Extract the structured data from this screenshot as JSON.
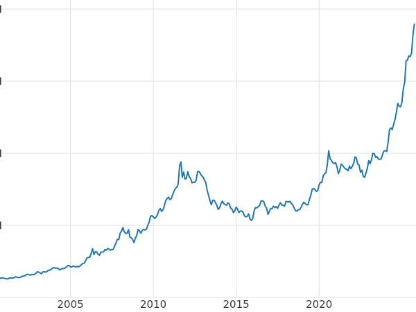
{
  "figure": {
    "background": "#ffffff"
  },
  "chart_data": {
    "type": "line",
    "title": "",
    "legend": "none",
    "grid": true,
    "x_axis": {
      "domain": [
        2000.75,
        2025.85
      ],
      "ticks": [
        {
          "label": "2005",
          "value": 2005
        },
        {
          "label": "2010",
          "value": 2010
        },
        {
          "label": "2015",
          "value": 2015
        },
        {
          "label": "2020",
          "value": 2020
        }
      ]
    },
    "y_axis": {
      "domain": [
        0,
        4125
      ],
      "gridline_values": [
        0,
        1000,
        2000,
        3000,
        4000
      ],
      "tick_labels_visible": false
    },
    "style": {
      "line_color": "#1f77b4",
      "line_width": 2,
      "grid_color": "#e2e2e2",
      "grid_width": 1,
      "tick_label_color": "#3a3a3a",
      "tick_label_font_size": 15,
      "background": "#ffffff"
    },
    "series": [
      {
        "name": "value",
        "color": "#1f77b4",
        "start_x": 2000.75,
        "x_step": 0.08333333,
        "values": [
          270,
          266,
          272,
          266,
          262,
          258,
          260,
          272,
          270,
          267,
          272,
          287,
          283,
          276,
          277,
          281,
          295,
          294,
          303,
          314,
          321,
          313,
          310,
          319,
          317,
          320,
          333,
          357,
          351,
          340,
          328,
          355,
          356,
          351,
          360,
          379,
          375,
          389,
          407,
          414,
          405,
          408,
          403,
          383,
          392,
          398,
          401,
          405,
          420,
          439,
          442,
          424,
          423,
          434,
          429,
          422,
          431,
          424,
          437,
          456,
          470,
          476,
          510,
          550,
          555,
          557,
          611,
          675,
          596,
          634,
          632,
          599,
          586,
          627,
          630,
          631,
          665,
          655,
          679,
          667,
          656,
          665,
          665,
          713,
          755,
          806,
          803,
          890,
          922,
          968,
          910,
          889,
          889,
          940,
          839,
          829,
          807,
          761,
          820,
          858,
          943,
          924,
          890,
          929,
          946,
          934,
          949,
          997,
          1043,
          1127,
          1135,
          1118,
          1095,
          1113,
          1149,
          1205,
          1233,
          1193,
          1216,
          1271,
          1342,
          1370,
          1391,
          1356,
          1373,
          1424,
          1474,
          1512,
          1529,
          1573,
          1825,
          1880,
          1666,
          1739,
          1640,
          1656,
          1743,
          1674,
          1650,
          1589,
          1598,
          1594,
          1626,
          1744,
          1747,
          1721,
          1688,
          1671,
          1628,
          1593,
          1485,
          1414,
          1343,
          1286,
          1347,
          1348,
          1316,
          1276,
          1221,
          1244,
          1301,
          1336,
          1299,
          1289,
          1279,
          1311,
          1296,
          1238,
          1223,
          1176,
          1201,
          1251,
          1227,
          1178,
          1198,
          1198,
          1181,
          1130,
          1117,
          1125,
          1159,
          1086,
          1068,
          1097,
          1200,
          1246,
          1242,
          1260,
          1276,
          1337,
          1340,
          1326,
          1266,
          1238,
          1152,
          1192,
          1234,
          1231,
          1266,
          1246,
          1260,
          1236,
          1283,
          1314,
          1280,
          1282,
          1264,
          1331,
          1330,
          1325,
          1334,
          1303,
          1281,
          1238,
          1201,
          1198,
          1215,
          1221,
          1250,
          1292,
          1320,
          1301,
          1286,
          1284,
          1359,
          1413,
          1498,
          1511,
          1495,
          1471,
          1479,
          1561,
          1597,
          1592,
          1683,
          1716,
          1732,
          1843,
          2035,
          1922,
          1900,
          1866,
          1858,
          1867,
          1808,
          1718,
          1762,
          1850,
          1835,
          1807,
          1784,
          1777,
          1757,
          1820,
          1787,
          1817,
          1856,
          1948,
          1937,
          1850,
          1837,
          1736,
          1765,
          1681,
          1664,
          1725,
          1797,
          1898,
          1855,
          1913,
          2000,
          1992,
          1943,
          1951,
          1918,
          1916,
          1920,
          1984,
          2034,
          2034,
          2025,
          2158,
          2330,
          2351,
          2327,
          2398,
          2470,
          2568,
          2690,
          2652,
          2644,
          2708,
          2897,
          2984,
          3280,
          3290,
          3350,
          3340,
          3390,
          3640,
          3790
        ]
      }
    ]
  }
}
